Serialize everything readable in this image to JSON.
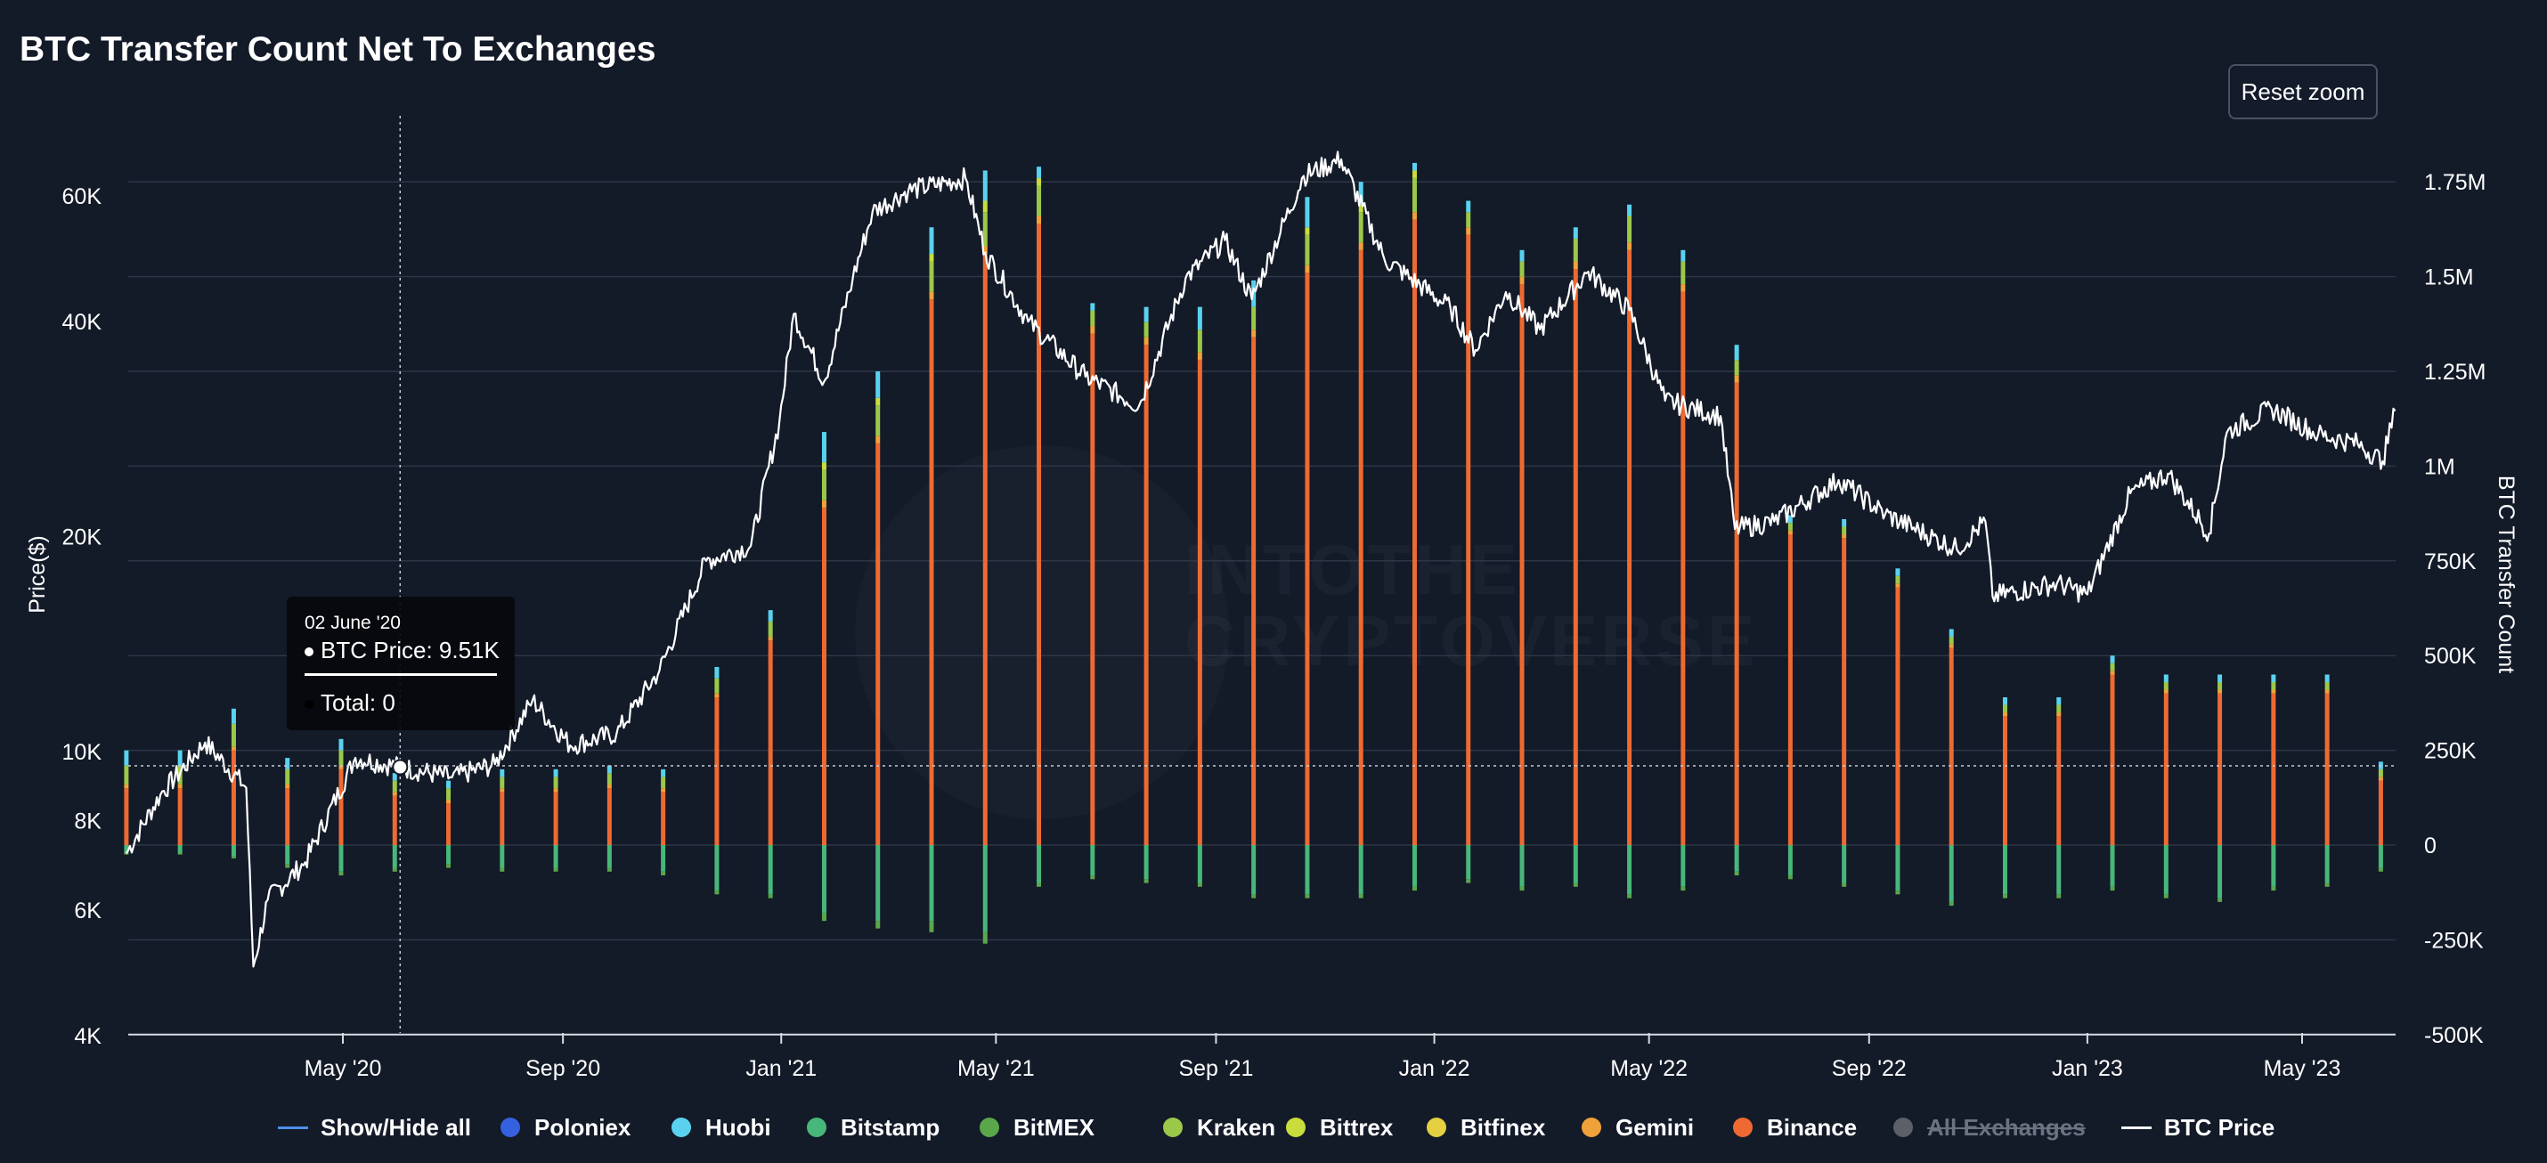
{
  "title": "BTC Transfer Count Net To Exchanges",
  "reset_zoom_label": "Reset zoom",
  "tooltip": {
    "date": "02 June '20",
    "price": "BTC Price: 9.51K",
    "total": "Total: 0"
  },
  "watermark": [
    "INTOTHE",
    "CRYPTOVERSE"
  ],
  "chart_data": {
    "type": "bar",
    "title": "BTC Transfer Count Net To Exchanges",
    "ylabel_left": "Price($)",
    "ylabel_right": "BTC Transfer Count",
    "left_axis": {
      "scale": "log",
      "range": [
        4000,
        75000
      ],
      "ticks": [
        4000,
        6000,
        8000,
        10000,
        20000,
        40000,
        60000
      ],
      "tick_labels": [
        "4K",
        "6K",
        "8K",
        "10K",
        "20K",
        "40K",
        "60K"
      ]
    },
    "right_axis": {
      "range": [
        -500000,
        1800000
      ],
      "ticks": [
        -500000,
        -250000,
        0,
        250000,
        500000,
        750000,
        1000000,
        1250000,
        1500000,
        1750000
      ],
      "tick_labels": [
        "-500K",
        "-250K",
        "0",
        "250K",
        "500K",
        "750K",
        "1M",
        "1.25M",
        "1.5M",
        "1.75M"
      ]
    },
    "x_axis": {
      "start": "2020-01-01",
      "end": "2023-06-30",
      "ticks": [
        "2020-05-01",
        "2020-09-01",
        "2021-01-01",
        "2021-05-01",
        "2021-09-01",
        "2022-01-01",
        "2022-05-01",
        "2022-09-01",
        "2023-01-01",
        "2023-05-01"
      ],
      "tick_labels": [
        "May '20",
        "Sep '20",
        "Jan '21",
        "May '21",
        "Sep '21",
        "Jan '22",
        "May '22",
        "Sep '22",
        "Jan '23",
        "May '23"
      ]
    },
    "crosshair_date": "2020-06-02",
    "crosshair_price": 9510,
    "legend": [
      {
        "name": "Show/Hide all",
        "kind": "line",
        "color": "#4d8fe8"
      },
      {
        "name": "Poloniex",
        "kind": "dot",
        "color": "#3560e0"
      },
      {
        "name": "Huobi",
        "kind": "dot",
        "color": "#5ad2ef"
      },
      {
        "name": "Bitstamp",
        "kind": "dot",
        "color": "#48b77a"
      },
      {
        "name": "BitMEX",
        "kind": "dot",
        "color": "#5aa64b"
      },
      {
        "name": "Kraken",
        "kind": "dot",
        "color": "#9cc84a"
      },
      {
        "name": "Bittrex",
        "kind": "dot",
        "color": "#c8dd3c"
      },
      {
        "name": "Bitfinex",
        "kind": "dot",
        "color": "#e4d040"
      },
      {
        "name": "Gemini",
        "kind": "dot",
        "color": "#f0a23a"
      },
      {
        "name": "Binance",
        "kind": "dot",
        "color": "#ee6a32"
      },
      {
        "name": "All Exchanges",
        "kind": "dot",
        "color": "#5e6068",
        "hidden": true
      },
      {
        "name": "BTC Price",
        "kind": "line",
        "color": "#ffffff"
      }
    ],
    "bars": {
      "dates": [
        "2020-01-01",
        "2020-01-31",
        "2020-03-01",
        "2020-03-31",
        "2020-04-30",
        "2020-05-30",
        "2020-06-29",
        "2020-07-29",
        "2020-08-28",
        "2020-09-27",
        "2020-10-27",
        "2020-11-26",
        "2020-12-26",
        "2021-01-25",
        "2021-02-24",
        "2021-03-26",
        "2021-04-25",
        "2021-05-25",
        "2021-06-24",
        "2021-07-24",
        "2021-08-23",
        "2021-09-22",
        "2021-10-22",
        "2021-11-21",
        "2021-12-21",
        "2022-01-20",
        "2022-02-19",
        "2022-03-21",
        "2022-04-20",
        "2022-05-20",
        "2022-06-19",
        "2022-07-19",
        "2022-08-18",
        "2022-09-17",
        "2022-10-17",
        "2022-11-16",
        "2022-12-16",
        "2023-01-15",
        "2023-02-14",
        "2023-03-16",
        "2023-04-15",
        "2023-05-15",
        "2023-06-14"
      ],
      "series": [
        {
          "name": "Binance",
          "color": "#ee6a32",
          "values": [
            150000,
            150000,
            250000,
            150000,
            200000,
            130000,
            110000,
            140000,
            140000,
            150000,
            140000,
            390000,
            540000,
            890000,
            1060000,
            1440000,
            1560000,
            1640000,
            1350000,
            1320000,
            1280000,
            1340000,
            1510000,
            1570000,
            1650000,
            1610000,
            1480000,
            1520000,
            1570000,
            1460000,
            1220000,
            820000,
            810000,
            680000,
            520000,
            340000,
            340000,
            450000,
            400000,
            400000,
            400000,
            400000,
            170000
          ]
        },
        {
          "name": "Gemini",
          "color": "#f0a23a",
          "values": [
            10000,
            10000,
            10000,
            10000,
            10000,
            10000,
            10000,
            10000,
            10000,
            10000,
            10000,
            10000,
            10000,
            20000,
            20000,
            20000,
            20000,
            20000,
            20000,
            20000,
            20000,
            20000,
            20000,
            20000,
            20000,
            20000,
            20000,
            20000,
            20000,
            20000,
            20000,
            10000,
            10000,
            10000,
            10000,
            10000,
            10000,
            10000,
            10000,
            10000,
            10000,
            10000,
            10000
          ]
        },
        {
          "name": "Kraken",
          "color": "#9cc84a",
          "values": [
            50000,
            50000,
            60000,
            40000,
            40000,
            30000,
            30000,
            30000,
            30000,
            30000,
            30000,
            40000,
            40000,
            80000,
            80000,
            80000,
            90000,
            80000,
            40000,
            40000,
            60000,
            60000,
            80000,
            80000,
            90000,
            40000,
            40000,
            60000,
            70000,
            60000,
            40000,
            20000,
            20000,
            20000,
            20000,
            20000,
            20000,
            20000,
            20000,
            20000,
            20000,
            20000,
            20000
          ]
        },
        {
          "name": "Bittrex",
          "color": "#c8dd3c",
          "values": [
            0,
            0,
            0,
            0,
            0,
            0,
            0,
            0,
            0,
            0,
            0,
            0,
            0,
            20000,
            20000,
            20000,
            30000,
            20000,
            0,
            0,
            0,
            0,
            20000,
            20000,
            20000,
            0,
            0,
            0,
            0,
            0,
            0,
            0,
            0,
            0,
            0,
            0,
            0,
            0,
            0,
            0,
            0,
            0,
            0
          ]
        },
        {
          "name": "Huobi",
          "color": "#5ad2ef",
          "values": [
            40000,
            40000,
            40000,
            30000,
            30000,
            20000,
            20000,
            20000,
            20000,
            20000,
            20000,
            30000,
            30000,
            80000,
            70000,
            70000,
            80000,
            30000,
            20000,
            40000,
            60000,
            70000,
            80000,
            60000,
            20000,
            30000,
            30000,
            30000,
            30000,
            30000,
            40000,
            20000,
            20000,
            20000,
            20000,
            20000,
            20000,
            20000,
            20000,
            20000,
            20000,
            20000,
            20000
          ]
        },
        {
          "name": "Bitstamp",
          "color": "#48b77a",
          "values": [
            -20000,
            -20000,
            -30000,
            -50000,
            -70000,
            -60000,
            -50000,
            -60000,
            -60000,
            -60000,
            -70000,
            -120000,
            -130000,
            -180000,
            -200000,
            -200000,
            -230000,
            -100000,
            -80000,
            -90000,
            -100000,
            -130000,
            -130000,
            -130000,
            -110000,
            -90000,
            -110000,
            -100000,
            -130000,
            -110000,
            -70000,
            -80000,
            -100000,
            -120000,
            -150000,
            -130000,
            -130000,
            -110000,
            -130000,
            -140000,
            -110000,
            -100000,
            -60000
          ]
        },
        {
          "name": "BitMEX",
          "color": "#5aa64b",
          "values": [
            -5000,
            -5000,
            -5000,
            -10000,
            -10000,
            -10000,
            -10000,
            -10000,
            -10000,
            -10000,
            -10000,
            -10000,
            -10000,
            -20000,
            -20000,
            -30000,
            -30000,
            -10000,
            -10000,
            -10000,
            -10000,
            -10000,
            -10000,
            -10000,
            -10000,
            -10000,
            -10000,
            -10000,
            -10000,
            -10000,
            -10000,
            -10000,
            -10000,
            -10000,
            -10000,
            -10000,
            -10000,
            -10000,
            -10000,
            -10000,
            -10000,
            -10000,
            -10000
          ]
        }
      ]
    },
    "btc_price": {
      "dates": [
        "2020-01-01",
        "2020-01-20",
        "2020-02-14",
        "2020-03-08",
        "2020-03-12",
        "2020-03-20",
        "2020-04-10",
        "2020-05-08",
        "2020-06-02",
        "2020-07-01",
        "2020-07-25",
        "2020-08-15",
        "2020-09-05",
        "2020-10-01",
        "2020-10-25",
        "2020-11-20",
        "2020-12-15",
        "2020-12-31",
        "2021-01-08",
        "2021-01-25",
        "2021-02-10",
        "2021-02-21",
        "2021-03-13",
        "2021-04-14",
        "2021-04-25",
        "2021-05-19",
        "2021-06-20",
        "2021-07-20",
        "2021-08-15",
        "2021-09-06",
        "2021-09-21",
        "2021-10-20",
        "2021-11-10",
        "2021-12-04",
        "2022-01-10",
        "2022-01-24",
        "2022-02-10",
        "2022-03-01",
        "2022-03-28",
        "2022-04-20",
        "2022-05-10",
        "2022-06-10",
        "2022-06-18",
        "2022-07-10",
        "2022-08-15",
        "2022-09-10",
        "2022-10-20",
        "2022-11-05",
        "2022-11-09",
        "2022-12-15",
        "2023-01-01",
        "2023-01-25",
        "2023-02-15",
        "2023-03-10",
        "2023-03-20",
        "2023-04-14",
        "2023-05-10",
        "2023-06-01",
        "2023-06-15",
        "2023-06-22"
      ],
      "values": [
        7200,
        8700,
        10300,
        8900,
        5000,
        6200,
        7000,
        9800,
        9510,
        9200,
        9600,
        11800,
        10200,
        10600,
        13000,
        18500,
        19400,
        29000,
        41000,
        33000,
        46000,
        57000,
        61000,
        63500,
        50000,
        40000,
        33500,
        30500,
        46000,
        52000,
        43000,
        64000,
        67500,
        49000,
        41800,
        36500,
        44000,
        39000,
        47000,
        41500,
        31000,
        29500,
        20500,
        21000,
        24000,
        21500,
        19200,
        21000,
        16500,
        17200,
        16600,
        23000,
        24500,
        20200,
        28000,
        30200,
        27800,
        27000,
        25500,
        30000
      ]
    }
  }
}
